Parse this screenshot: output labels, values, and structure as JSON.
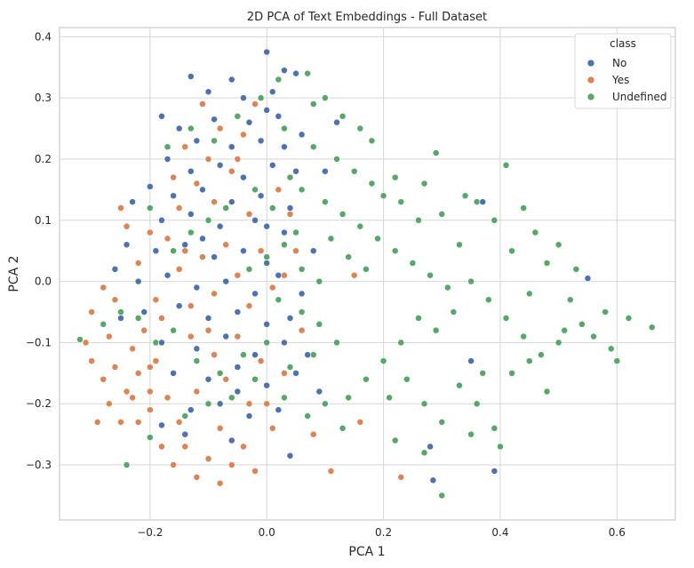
{
  "chart_data": {
    "type": "scatter",
    "title": "2D PCA of Text Embeddings - Full Dataset",
    "xlabel": "PCA 1",
    "ylabel": "PCA 2",
    "xlim": [
      -0.355,
      0.7
    ],
    "ylim": [
      -0.39,
      0.415
    ],
    "xticks": [
      -0.2,
      0.0,
      0.2,
      0.4,
      0.6
    ],
    "xtick_labels": [
      "−0.2",
      "0.0",
      "0.2",
      "0.4",
      "0.6"
    ],
    "yticks": [
      -0.3,
      -0.2,
      -0.1,
      0.0,
      0.1,
      0.2,
      0.3,
      0.4
    ],
    "ytick_labels": [
      "−0.3",
      "−0.2",
      "−0.1",
      "0.0",
      "0.1",
      "0.2",
      "0.3",
      "0.4"
    ],
    "grid": true,
    "legend": {
      "title": "class",
      "placement": "upper-right"
    },
    "series": [
      {
        "name": "No",
        "color": "#4c72b0",
        "points": [
          [
            0.0,
            0.375
          ],
          [
            -0.06,
            0.33
          ],
          [
            -0.13,
            0.335
          ],
          [
            -0.1,
            0.31
          ],
          [
            0.03,
            0.345
          ],
          [
            0.05,
            0.34
          ],
          [
            -0.04,
            0.3
          ],
          [
            -0.09,
            0.265
          ],
          [
            -0.03,
            0.26
          ],
          [
            0.0,
            0.28
          ],
          [
            0.02,
            0.27
          ],
          [
            -0.18,
            0.27
          ],
          [
            -0.15,
            0.25
          ],
          [
            -0.12,
            0.23
          ],
          [
            -0.06,
            0.22
          ],
          [
            -0.01,
            0.23
          ],
          [
            0.03,
            0.22
          ],
          [
            0.06,
            0.24
          ],
          [
            -0.17,
            0.2
          ],
          [
            -0.13,
            0.18
          ],
          [
            -0.08,
            0.19
          ],
          [
            -0.04,
            0.17
          ],
          [
            0.01,
            0.19
          ],
          [
            0.05,
            0.18
          ],
          [
            -0.2,
            0.155
          ],
          [
            -0.16,
            0.14
          ],
          [
            -0.11,
            0.15
          ],
          [
            -0.06,
            0.13
          ],
          [
            -0.01,
            0.14
          ],
          [
            0.04,
            0.12
          ],
          [
            -0.23,
            0.13
          ],
          [
            -0.18,
            0.1
          ],
          [
            -0.13,
            0.11
          ],
          [
            -0.08,
            0.09
          ],
          [
            -0.02,
            0.1
          ],
          [
            0.03,
            0.08
          ],
          [
            -0.24,
            0.06
          ],
          [
            -0.19,
            0.05
          ],
          [
            -0.14,
            0.06
          ],
          [
            -0.09,
            0.04
          ],
          [
            -0.04,
            0.05
          ],
          [
            0.0,
            0.03
          ],
          [
            -0.22,
            0.0
          ],
          [
            -0.17,
            0.01
          ],
          [
            -0.12,
            -0.01
          ],
          [
            -0.07,
            0.0
          ],
          [
            -0.02,
            -0.02
          ],
          [
            0.02,
            0.01
          ],
          [
            -0.21,
            -0.05
          ],
          [
            -0.15,
            -0.04
          ],
          [
            -0.1,
            -0.06
          ],
          [
            -0.05,
            -0.05
          ],
          [
            0.0,
            -0.07
          ],
          [
            0.04,
            -0.06
          ],
          [
            -0.18,
            -0.1
          ],
          [
            -0.12,
            -0.11
          ],
          [
            -0.07,
            -0.09
          ],
          [
            -0.02,
            -0.12
          ],
          [
            0.03,
            -0.1
          ],
          [
            0.07,
            -0.12
          ],
          [
            -0.16,
            -0.15
          ],
          [
            -0.1,
            -0.16
          ],
          [
            -0.05,
            -0.14
          ],
          [
            0.0,
            -0.17
          ],
          [
            0.05,
            -0.15
          ],
          [
            0.09,
            -0.18
          ],
          [
            -0.13,
            -0.21
          ],
          [
            -0.08,
            -0.2
          ],
          [
            -0.03,
            -0.22
          ],
          [
            0.02,
            -0.21
          ],
          [
            -0.18,
            -0.235
          ],
          [
            -0.14,
            -0.25
          ],
          [
            -0.06,
            -0.26
          ],
          [
            0.04,
            -0.285
          ],
          [
            0.28,
            -0.27
          ],
          [
            0.285,
            -0.325
          ],
          [
            0.39,
            -0.31
          ],
          [
            0.37,
            0.13
          ],
          [
            0.55,
            0.005
          ],
          [
            0.35,
            -0.13
          ],
          [
            0.12,
            0.26
          ],
          [
            0.1,
            0.18
          ],
          [
            -0.25,
            -0.06
          ],
          [
            -0.26,
            0.02
          ],
          [
            0.01,
            0.31
          ],
          [
            -0.11,
            0.07
          ],
          [
            -0.05,
            -0.18
          ],
          [
            0.06,
            -0.02
          ],
          [
            0.08,
            0.05
          ],
          [
            0.0,
            0.09
          ]
        ]
      },
      {
        "name": "Yes",
        "color": "#dd8452",
        "points": [
          [
            -0.3,
            -0.13
          ],
          [
            -0.28,
            -0.16
          ],
          [
            -0.31,
            -0.1
          ],
          [
            -0.27,
            -0.2
          ],
          [
            -0.25,
            -0.23
          ],
          [
            -0.29,
            -0.23
          ],
          [
            -0.26,
            -0.14
          ],
          [
            -0.24,
            -0.18
          ],
          [
            -0.22,
            -0.15
          ],
          [
            -0.2,
            -0.21
          ],
          [
            -0.23,
            -0.11
          ],
          [
            -0.21,
            -0.08
          ],
          [
            -0.19,
            -0.13
          ],
          [
            -0.17,
            -0.19
          ],
          [
            -0.15,
            -0.23
          ],
          [
            -0.18,
            -0.27
          ],
          [
            -0.16,
            -0.3
          ],
          [
            -0.14,
            -0.27
          ],
          [
            -0.12,
            -0.32
          ],
          [
            -0.1,
            -0.29
          ],
          [
            -0.08,
            -0.33
          ],
          [
            -0.06,
            -0.3
          ],
          [
            -0.04,
            -0.27
          ],
          [
            -0.02,
            -0.31
          ],
          [
            -0.28,
            -0.01
          ],
          [
            -0.3,
            -0.05
          ],
          [
            -0.26,
            -0.03
          ],
          [
            -0.25,
            0.12
          ],
          [
            -0.2,
            0.08
          ],
          [
            -0.24,
            0.09
          ],
          [
            -0.22,
            0.03
          ],
          [
            -0.19,
            -0.03
          ],
          [
            -0.17,
            0.07
          ],
          [
            -0.15,
            0.02
          ],
          [
            -0.13,
            -0.04
          ],
          [
            -0.11,
            0.04
          ],
          [
            -0.09,
            -0.02
          ],
          [
            -0.07,
            0.06
          ],
          [
            -0.05,
            0.01
          ],
          [
            -0.03,
            -0.04
          ],
          [
            -0.01,
            0.05
          ],
          [
            0.01,
            -0.01
          ],
          [
            -0.16,
            0.17
          ],
          [
            -0.14,
            0.22
          ],
          [
            -0.12,
            0.16
          ],
          [
            -0.1,
            0.2
          ],
          [
            -0.08,
            0.25
          ],
          [
            -0.06,
            0.18
          ],
          [
            -0.04,
            0.24
          ],
          [
            -0.02,
            0.29
          ],
          [
            -0.15,
            0.12
          ],
          [
            -0.09,
            0.13
          ],
          [
            -0.03,
            0.11
          ],
          [
            0.02,
            0.15
          ],
          [
            -0.13,
            -0.09
          ],
          [
            -0.09,
            -0.12
          ],
          [
            -0.05,
            -0.09
          ],
          [
            -0.01,
            -0.13
          ],
          [
            -0.07,
            -0.16
          ],
          [
            -0.03,
            -0.2
          ],
          [
            0.01,
            -0.24
          ],
          [
            -0.12,
            -0.18
          ],
          [
            -0.08,
            -0.24
          ],
          [
            -0.2,
            -0.18
          ],
          [
            -0.22,
            -0.23
          ],
          [
            -0.27,
            -0.09
          ],
          [
            0.08,
            -0.25
          ],
          [
            0.11,
            -0.31
          ],
          [
            0.23,
            -0.32
          ],
          [
            0.03,
            0.01
          ],
          [
            0.06,
            -0.08
          ],
          [
            0.16,
            -0.23
          ],
          [
            0.15,
            0.01
          ],
          [
            0.04,
            0.11
          ],
          [
            -0.11,
            0.29
          ],
          [
            -0.05,
            0.2
          ],
          [
            0.0,
            -0.2
          ],
          [
            -0.18,
            -0.06
          ],
          [
            -0.23,
            -0.19
          ],
          [
            -0.2,
            -0.14
          ],
          [
            0.03,
            -0.15
          ],
          [
            -0.14,
            0.05
          ],
          [
            -0.1,
            -0.08
          ],
          [
            0.05,
            0.05
          ]
        ]
      },
      {
        "name": "Undefined",
        "color": "#55a868",
        "points": [
          [
            0.07,
            0.34
          ],
          [
            0.1,
            0.3
          ],
          [
            0.13,
            0.27
          ],
          [
            0.16,
            0.25
          ],
          [
            0.18,
            0.23
          ],
          [
            0.08,
            0.22
          ],
          [
            0.12,
            0.2
          ],
          [
            0.15,
            0.18
          ],
          [
            0.18,
            0.16
          ],
          [
            0.2,
            0.14
          ],
          [
            0.06,
            0.15
          ],
          [
            0.1,
            0.13
          ],
          [
            0.13,
            0.11
          ],
          [
            0.16,
            0.09
          ],
          [
            0.19,
            0.07
          ],
          [
            0.22,
            0.05
          ],
          [
            0.25,
            0.03
          ],
          [
            0.28,
            0.01
          ],
          [
            0.31,
            -0.01
          ],
          [
            0.33,
            0.06
          ],
          [
            0.3,
            0.11
          ],
          [
            0.26,
            0.1
          ],
          [
            0.23,
            0.13
          ],
          [
            0.29,
            0.21
          ],
          [
            0.36,
            0.13
          ],
          [
            0.39,
            0.1
          ],
          [
            0.41,
            0.19
          ],
          [
            0.42,
            0.05
          ],
          [
            0.45,
            -0.02
          ],
          [
            0.48,
            0.03
          ],
          [
            0.52,
            -0.03
          ],
          [
            0.54,
            -0.07
          ],
          [
            0.5,
            -0.1
          ],
          [
            0.47,
            -0.12
          ],
          [
            0.44,
            -0.09
          ],
          [
            0.41,
            -0.06
          ],
          [
            0.38,
            -0.03
          ],
          [
            0.35,
            0.0
          ],
          [
            0.32,
            -0.05
          ],
          [
            0.29,
            -0.08
          ],
          [
            0.26,
            -0.06
          ],
          [
            0.23,
            -0.1
          ],
          [
            0.2,
            -0.13
          ],
          [
            0.17,
            -0.16
          ],
          [
            0.14,
            -0.19
          ],
          [
            0.21,
            -0.19
          ],
          [
            0.24,
            -0.16
          ],
          [
            0.27,
            -0.2
          ],
          [
            0.3,
            -0.23
          ],
          [
            0.33,
            -0.17
          ],
          [
            0.36,
            -0.2
          ],
          [
            0.39,
            -0.24
          ],
          [
            0.42,
            -0.15
          ],
          [
            0.45,
            -0.13
          ],
          [
            0.48,
            -0.18
          ],
          [
            0.51,
            -0.08
          ],
          [
            0.56,
            -0.09
          ],
          [
            0.59,
            -0.11
          ],
          [
            0.62,
            -0.06
          ],
          [
            0.66,
            -0.075
          ],
          [
            0.6,
            -0.13
          ],
          [
            0.58,
            -0.05
          ],
          [
            0.53,
            0.02
          ],
          [
            0.5,
            0.06
          ],
          [
            0.46,
            0.08
          ],
          [
            0.44,
            0.12
          ],
          [
            0.34,
            0.14
          ],
          [
            0.27,
            0.16
          ],
          [
            0.22,
            0.17
          ],
          [
            0.3,
            -0.35
          ],
          [
            0.22,
            -0.26
          ],
          [
            0.27,
            -0.28
          ],
          [
            0.4,
            -0.27
          ],
          [
            0.37,
            -0.15
          ],
          [
            0.35,
            -0.25
          ],
          [
            0.05,
            0.08
          ],
          [
            0.03,
            0.06
          ],
          [
            0.0,
            0.04
          ],
          [
            -0.03,
            0.02
          ],
          [
            0.02,
            -0.03
          ],
          [
            0.06,
            -0.05
          ],
          [
            0.09,
            -0.07
          ],
          [
            0.12,
            -0.1
          ],
          [
            0.08,
            -0.12
          ],
          [
            0.04,
            -0.14
          ],
          [
            0.0,
            -0.1
          ],
          [
            -0.04,
            -0.12
          ],
          [
            -0.08,
            -0.15
          ],
          [
            -0.12,
            -0.13
          ],
          [
            -0.16,
            -0.08
          ],
          [
            -0.19,
            -0.1
          ],
          [
            -0.22,
            -0.06
          ],
          [
            -0.25,
            -0.05
          ],
          [
            -0.28,
            -0.07
          ],
          [
            -0.32,
            -0.095
          ],
          [
            -0.24,
            -0.3
          ],
          [
            -0.2,
            -0.255
          ],
          [
            -0.14,
            -0.22
          ],
          [
            -0.1,
            -0.2
          ],
          [
            -0.06,
            -0.19
          ],
          [
            -0.02,
            -0.16
          ],
          [
            0.03,
            -0.19
          ],
          [
            0.07,
            -0.22
          ],
          [
            0.1,
            -0.2
          ],
          [
            0.13,
            -0.24
          ],
          [
            0.01,
            0.12
          ],
          [
            0.04,
            0.17
          ],
          [
            -0.02,
            0.15
          ],
          [
            -0.07,
            0.12
          ],
          [
            -0.1,
            0.1
          ],
          [
            -0.13,
            0.08
          ],
          [
            -0.16,
            0.05
          ],
          [
            -0.2,
            0.12
          ],
          [
            -0.17,
            0.22
          ],
          [
            -0.13,
            0.25
          ],
          [
            -0.09,
            0.23
          ],
          [
            -0.05,
            0.27
          ],
          [
            -0.01,
            0.3
          ],
          [
            0.03,
            0.25
          ],
          [
            0.08,
            0.29
          ],
          [
            0.02,
            0.33
          ],
          [
            0.11,
            0.07
          ],
          [
            0.14,
            0.04
          ],
          [
            0.17,
            0.02
          ],
          [
            0.09,
            0.0
          ],
          [
            0.06,
            0.02
          ]
        ]
      }
    ]
  }
}
